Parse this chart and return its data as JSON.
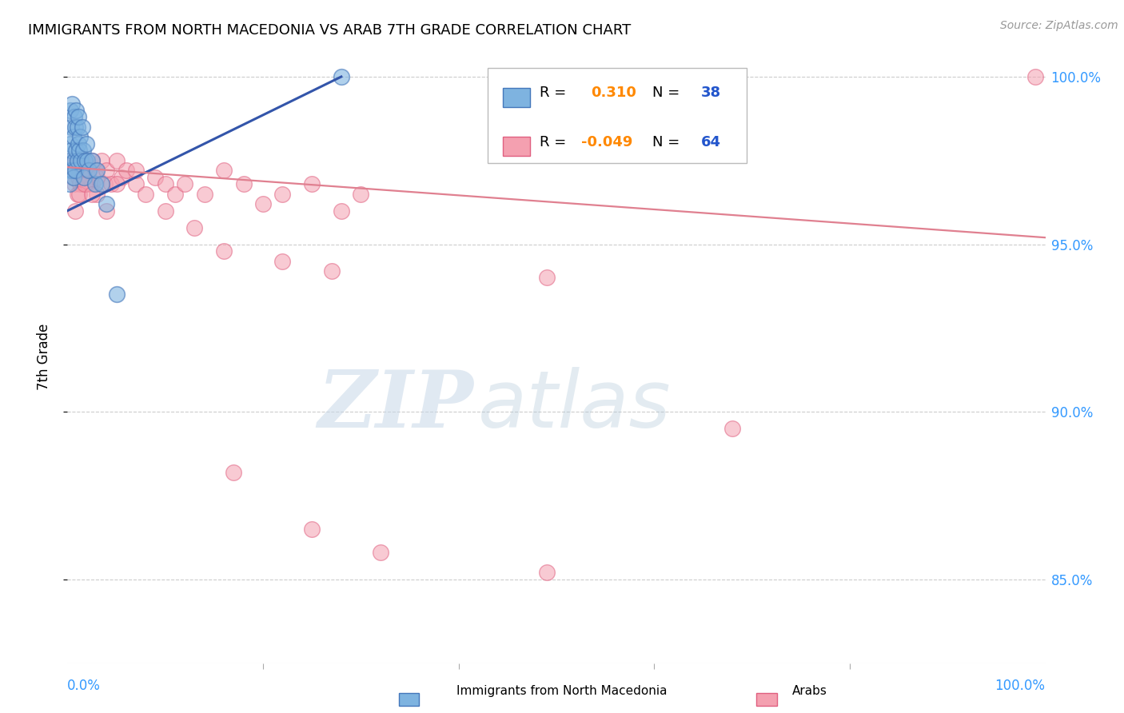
{
  "title": "IMMIGRANTS FROM NORTH MACEDONIA VS ARAB 7TH GRADE CORRELATION CHART",
  "source": "Source: ZipAtlas.com",
  "ylabel": "7th Grade",
  "xlim": [
    0.0,
    1.0
  ],
  "ylim": [
    0.825,
    1.008
  ],
  "ytick_labels": [
    "85.0%",
    "90.0%",
    "95.0%",
    "100.0%"
  ],
  "ytick_values": [
    0.85,
    0.9,
    0.95,
    1.0
  ],
  "blue_color": "#7EB3E0",
  "pink_color": "#F4A0B0",
  "blue_edge_color": "#4477BB",
  "pink_edge_color": "#E06080",
  "blue_trend_color": "#3355AA",
  "pink_trend_color": "#E08090",
  "r1_val": "0.310",
  "n1_val": "38",
  "r2_val": "-0.049",
  "n2_val": "64",
  "val_color": "#FF8800",
  "n_color": "#2255CC",
  "watermark_zip": "ZIP",
  "watermark_atlas": "atlas",
  "blue_x": [
    0.001,
    0.002,
    0.002,
    0.003,
    0.003,
    0.004,
    0.004,
    0.005,
    0.005,
    0.006,
    0.006,
    0.007,
    0.007,
    0.008,
    0.008,
    0.009,
    0.009,
    0.01,
    0.01,
    0.011,
    0.011,
    0.012,
    0.013,
    0.014,
    0.015,
    0.016,
    0.017,
    0.018,
    0.019,
    0.02,
    0.022,
    0.025,
    0.028,
    0.03,
    0.035,
    0.04,
    0.05,
    0.28
  ],
  "blue_y": [
    0.972,
    0.975,
    0.968,
    0.98,
    0.99,
    0.978,
    0.985,
    0.972,
    0.992,
    0.97,
    0.982,
    0.975,
    0.988,
    0.972,
    0.985,
    0.978,
    0.99,
    0.975,
    0.985,
    0.98,
    0.988,
    0.978,
    0.982,
    0.975,
    0.985,
    0.978,
    0.97,
    0.975,
    0.98,
    0.975,
    0.972,
    0.975,
    0.968,
    0.972,
    0.968,
    0.962,
    0.935,
    1.0
  ],
  "pink_x": [
    0.003,
    0.005,
    0.006,
    0.007,
    0.008,
    0.009,
    0.01,
    0.011,
    0.012,
    0.013,
    0.014,
    0.015,
    0.016,
    0.018,
    0.02,
    0.022,
    0.025,
    0.028,
    0.03,
    0.035,
    0.038,
    0.04,
    0.045,
    0.05,
    0.055,
    0.06,
    0.07,
    0.08,
    0.09,
    0.1,
    0.11,
    0.12,
    0.14,
    0.16,
    0.18,
    0.2,
    0.22,
    0.25,
    0.28,
    0.3,
    0.01,
    0.015,
    0.02,
    0.025,
    0.03,
    0.04,
    0.05,
    0.07,
    0.1,
    0.13,
    0.008,
    0.012,
    0.018,
    0.025,
    0.16,
    0.22,
    0.27,
    0.49,
    0.68,
    0.99,
    0.17,
    0.25,
    0.32,
    0.49
  ],
  "pink_y": [
    0.975,
    0.972,
    0.97,
    0.968,
    0.975,
    0.972,
    0.975,
    0.97,
    0.972,
    0.968,
    0.975,
    0.972,
    0.968,
    0.975,
    0.972,
    0.97,
    0.968,
    0.972,
    0.97,
    0.975,
    0.968,
    0.972,
    0.968,
    0.975,
    0.97,
    0.972,
    0.968,
    0.965,
    0.97,
    0.968,
    0.965,
    0.968,
    0.965,
    0.972,
    0.968,
    0.962,
    0.965,
    0.968,
    0.96,
    0.965,
    0.965,
    0.975,
    0.968,
    0.975,
    0.965,
    0.96,
    0.968,
    0.972,
    0.96,
    0.955,
    0.96,
    0.965,
    0.968,
    0.965,
    0.948,
    0.945,
    0.942,
    0.94,
    0.895,
    1.0,
    0.882,
    0.865,
    0.858,
    0.852
  ],
  "blue_trend_x0": 0.0,
  "blue_trend_x1": 0.28,
  "blue_trend_y0": 0.96,
  "blue_trend_y1": 1.0,
  "pink_trend_x0": 0.0,
  "pink_trend_x1": 1.0,
  "pink_trend_y0": 0.973,
  "pink_trend_y1": 0.952
}
